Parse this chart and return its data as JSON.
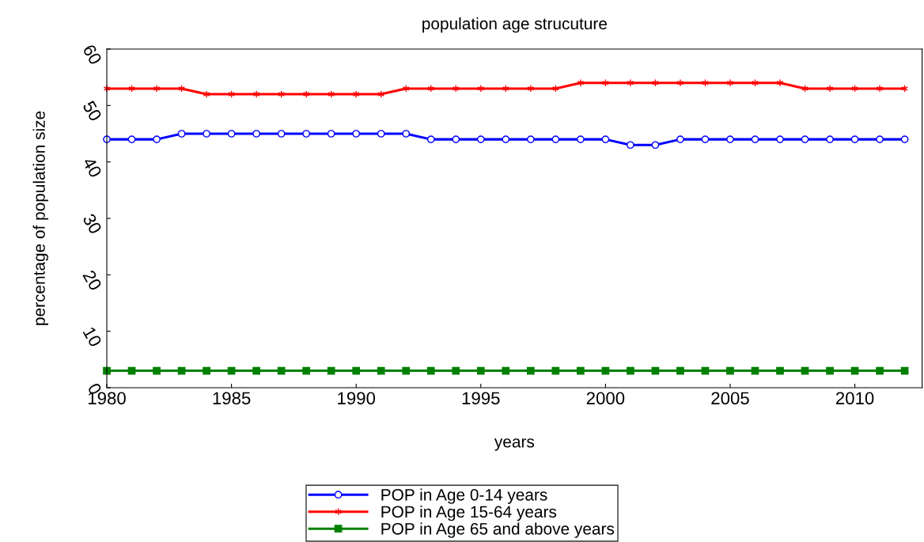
{
  "chart_data": {
    "type": "line",
    "title": "population age strucuture",
    "xlabel": "years",
    "ylabel": "percentage of population size",
    "x": [
      1980,
      1981,
      1982,
      1983,
      1984,
      1985,
      1986,
      1987,
      1988,
      1989,
      1990,
      1991,
      1992,
      1993,
      1994,
      1995,
      1996,
      1997,
      1998,
      1999,
      2000,
      2001,
      2002,
      2003,
      2004,
      2005,
      2006,
      2007,
      2008,
      2009,
      2010,
      2011,
      2012
    ],
    "series": [
      {
        "name": "POP in Age 0-14 years",
        "color": "#0000ff",
        "marker": "circle",
        "values": [
          44,
          44,
          44,
          45,
          45,
          45,
          45,
          45,
          45,
          45,
          45,
          45,
          45,
          44,
          44,
          44,
          44,
          44,
          44,
          44,
          44,
          43,
          43,
          44,
          44,
          44,
          44,
          44,
          44,
          44,
          44,
          44,
          44
        ]
      },
      {
        "name": "POP in Age 15-64 years",
        "color": "#ff0000",
        "marker": "cross",
        "values": [
          53,
          53,
          53,
          53,
          52,
          52,
          52,
          52,
          52,
          52,
          52,
          52,
          53,
          53,
          53,
          53,
          53,
          53,
          53,
          54,
          54,
          54,
          54,
          54,
          54,
          54,
          54,
          54,
          53,
          53,
          53,
          53,
          53
        ]
      },
      {
        "name": "POP in Age 65 and above years",
        "color": "#008000",
        "marker": "square",
        "values": [
          3,
          3,
          3,
          3,
          3,
          3,
          3,
          3,
          3,
          3,
          3,
          3,
          3,
          3,
          3,
          3,
          3,
          3,
          3,
          3,
          3,
          3,
          3,
          3,
          3,
          3,
          3,
          3,
          3,
          3,
          3,
          3,
          3
        ]
      }
    ],
    "xlim": [
      1980,
      2012.7
    ],
    "xticks": [
      1980,
      1985,
      1990,
      1995,
      2000,
      2005,
      2010
    ],
    "ylim": [
      0,
      60
    ],
    "yticks": [
      0,
      10,
      20,
      30,
      40,
      50,
      60
    ],
    "grid": false,
    "legend": "bottom",
    "line_style": "solid"
  }
}
